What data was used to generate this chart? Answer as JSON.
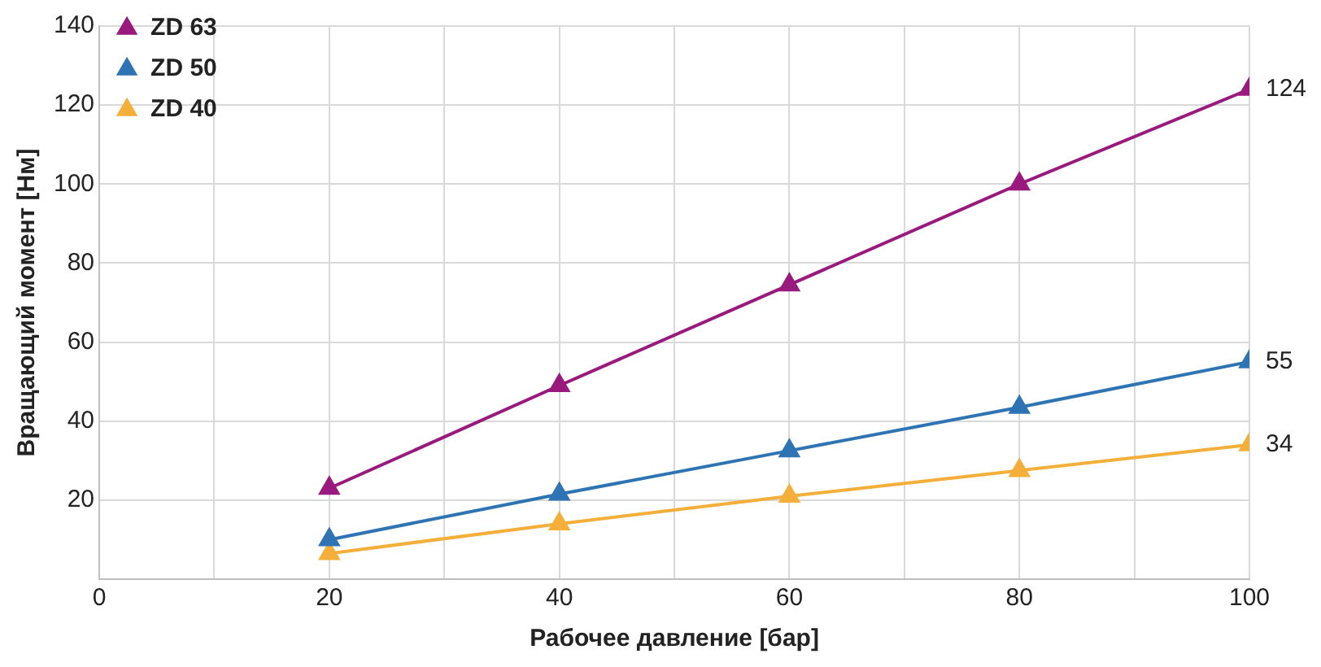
{
  "chart_data": {
    "type": "line",
    "xlabel": "Рабочее давление [бар]",
    "ylabel": "Вращающий момент [Нм]",
    "x": [
      20,
      40,
      60,
      80,
      100
    ],
    "series": [
      {
        "name": "ZD 63",
        "color": "#99197f",
        "values": [
          23,
          49,
          74.5,
          100,
          124
        ],
        "value_labels": [
          null,
          null,
          null,
          null,
          "124"
        ]
      },
      {
        "name": "ZD 50",
        "color": "#2e74b5",
        "values": [
          10,
          21.5,
          32.5,
          43.5,
          55
        ],
        "value_labels": [
          null,
          null,
          null,
          null,
          "55"
        ]
      },
      {
        "name": "ZD 40",
        "color": "#f4ae3a",
        "values": [
          6.5,
          14,
          21,
          27.5,
          34
        ],
        "value_labels": [
          null,
          null,
          null,
          null,
          "34"
        ]
      }
    ],
    "xlim": [
      0,
      100
    ],
    "xticks": [
      0,
      {
        "value": 10,
        "label": null
      },
      20,
      {
        "value": 30,
        "label": null
      },
      40,
      {
        "value": 50,
        "label": null
      },
      60,
      {
        "value": 70,
        "label": null
      },
      80,
      {
        "value": 90,
        "label": null
      },
      100
    ],
    "ylim": [
      0,
      140
    ],
    "yticks": [
      {
        "value": 0,
        "label": null
      },
      20,
      40,
      60,
      80,
      100,
      120,
      140
    ],
    "grid": true,
    "legend": "top left",
    "marker": "triangle",
    "line_style": "solid"
  }
}
